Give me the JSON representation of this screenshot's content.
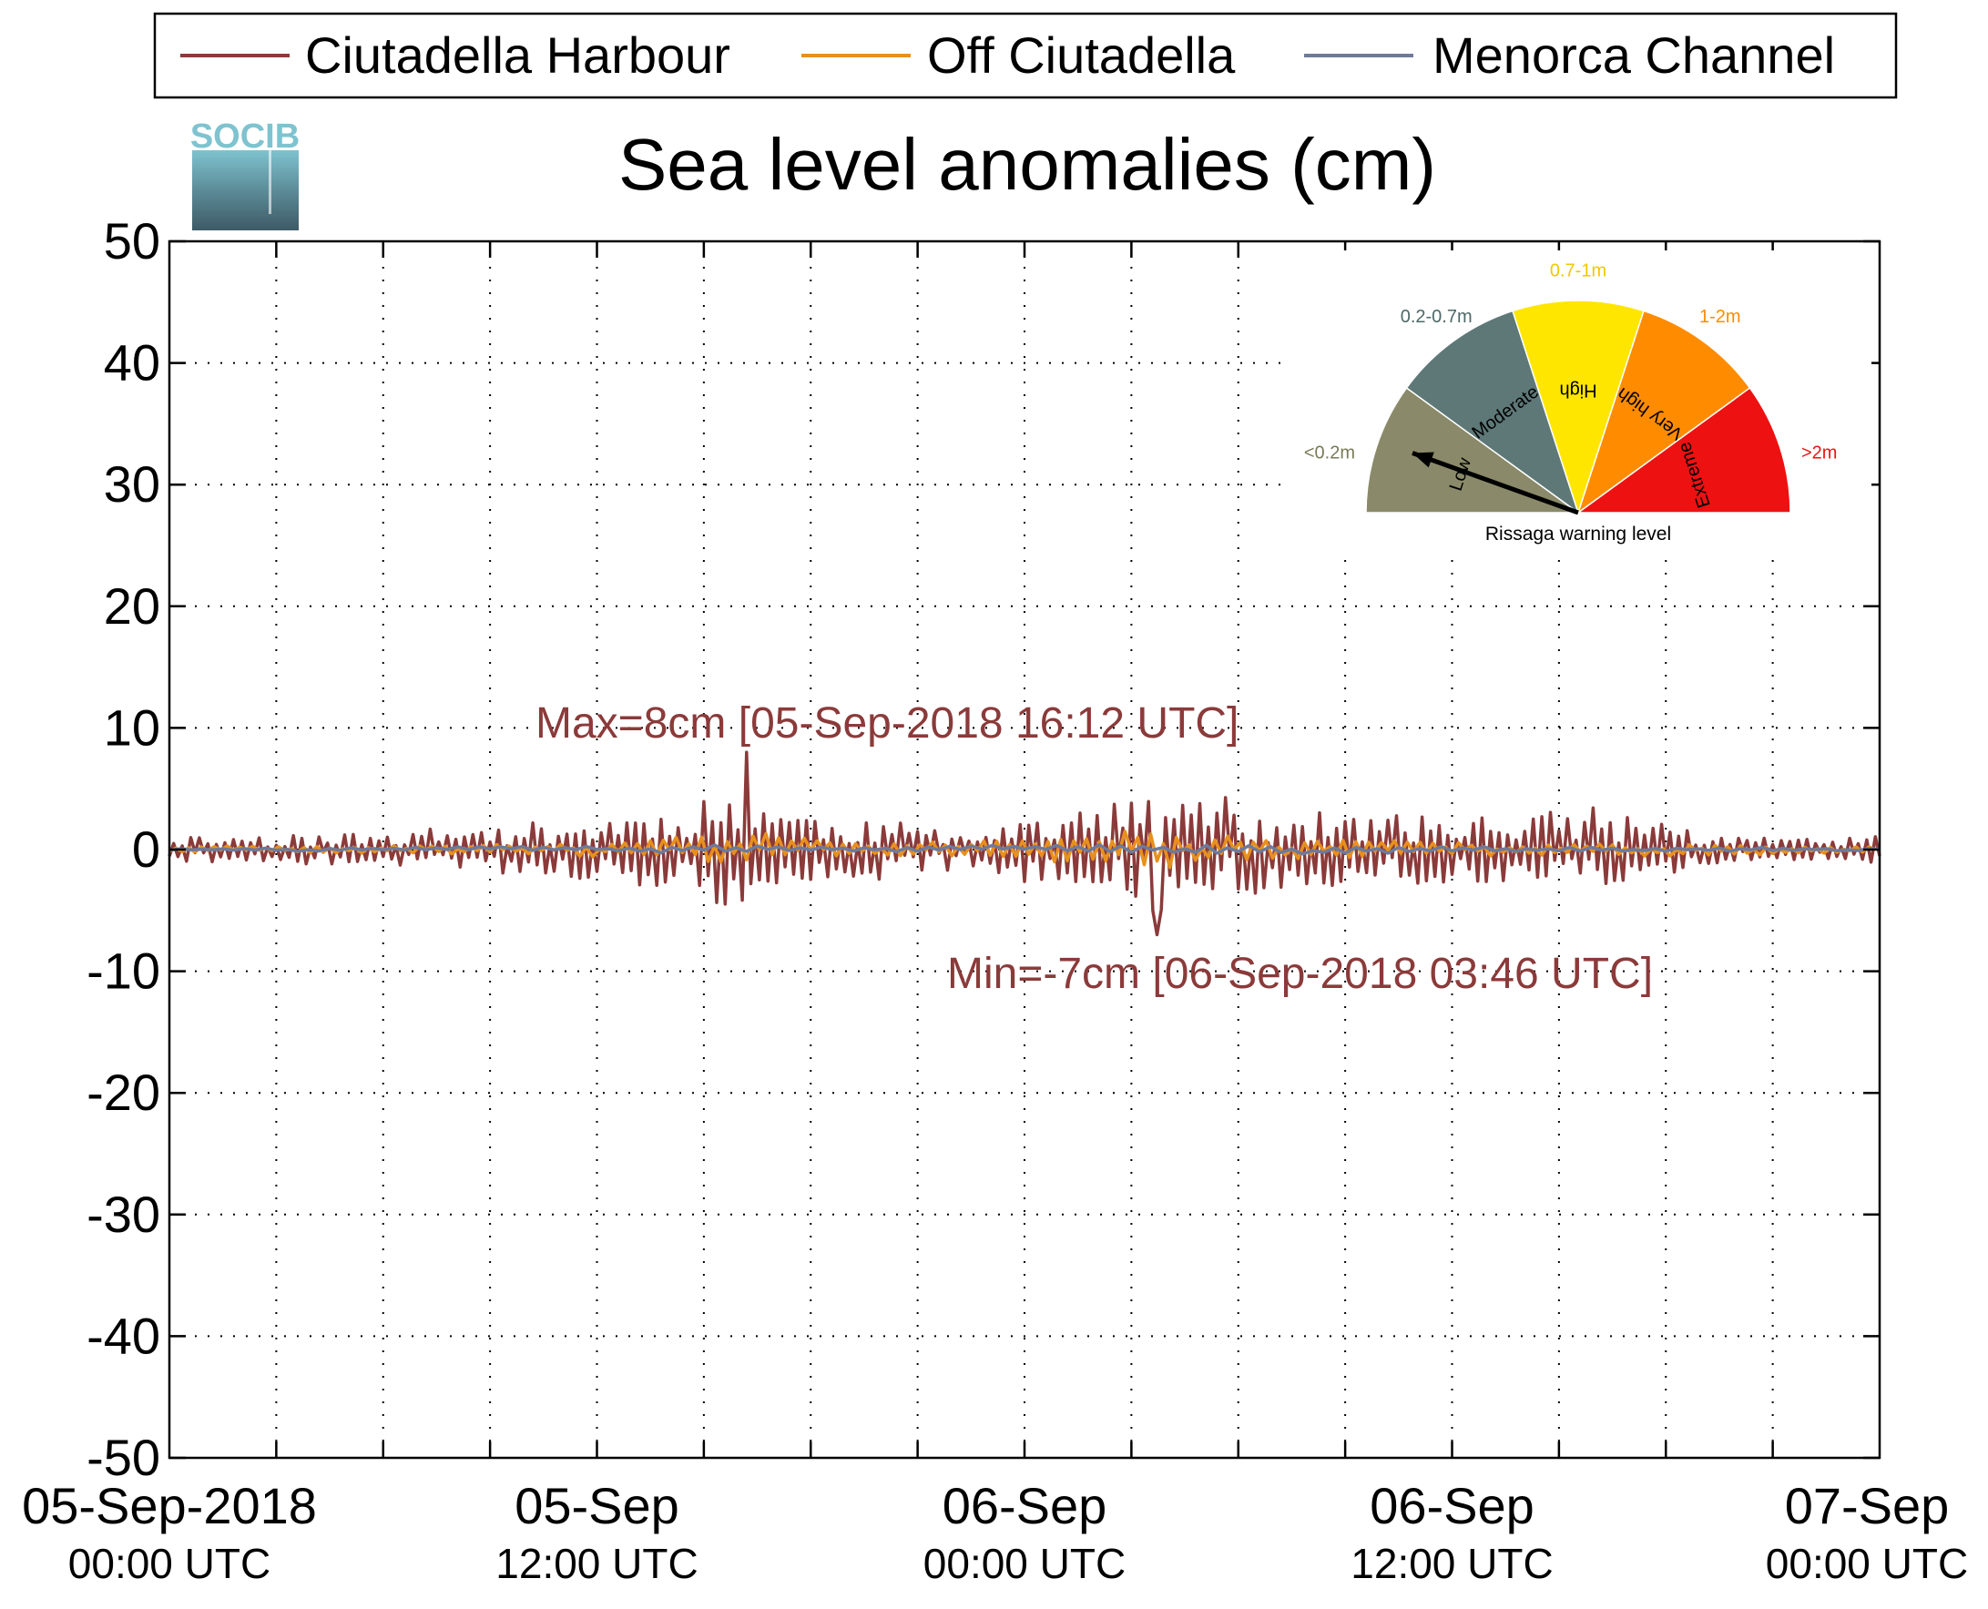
{
  "legend": {
    "items": [
      {
        "label": "Ciutadella Harbour",
        "color": "#8b3a3a"
      },
      {
        "label": "Off Ciutadella",
        "color": "#e8901e"
      },
      {
        "label": "Menorca Channel",
        "color": "#6e7a9a"
      }
    ]
  },
  "logo": {
    "text": "SOCIB"
  },
  "chart_data": {
    "type": "line",
    "title": "Sea level anomalies (cm)",
    "xlabel": "",
    "ylabel": "",
    "ylim": [
      -50,
      50
    ],
    "yticks": [
      50,
      40,
      30,
      20,
      10,
      0,
      -10,
      -20,
      -30,
      -40,
      -50
    ],
    "xlim": [
      "2018-09-05 00:00",
      "2018-09-07 00:00"
    ],
    "xtick_labels": [
      {
        "line1": "05-Sep-2018",
        "line2": "00:00 UTC",
        "hours": 0
      },
      {
        "line1": "05-Sep",
        "line2": "12:00 UTC",
        "hours": 12
      },
      {
        "line1": "06-Sep",
        "line2": "00:00 UTC",
        "hours": 24
      },
      {
        "line1": "06-Sep",
        "line2": "12:00 UTC",
        "hours": 36
      },
      {
        "line1": "07-Sep",
        "line2": "00:00 UTC",
        "hours": 48
      }
    ],
    "grid": true,
    "legend_position": "top",
    "series": [
      {
        "name": "Ciutadella Harbour",
        "color": "#8b3a3a",
        "envelope": [
          [
            0,
            1.5
          ],
          [
            3,
            1.5
          ],
          [
            6,
            1.8
          ],
          [
            9,
            2.5
          ],
          [
            11,
            3
          ],
          [
            12,
            3.2
          ],
          [
            13,
            4
          ],
          [
            14,
            4.5
          ],
          [
            15,
            5.5
          ],
          [
            16,
            6.5
          ],
          [
            16.2,
            7.8
          ],
          [
            17,
            5
          ],
          [
            18,
            4
          ],
          [
            19,
            3
          ],
          [
            20,
            3
          ],
          [
            21,
            2.5
          ],
          [
            22,
            2
          ],
          [
            23,
            3
          ],
          [
            24,
            3.5
          ],
          [
            25,
            4
          ],
          [
            26,
            4.5
          ],
          [
            27,
            5.5
          ],
          [
            27.8,
            7
          ],
          [
            29,
            6
          ],
          [
            30,
            5
          ],
          [
            31,
            4
          ],
          [
            32,
            4
          ],
          [
            34,
            3.5
          ],
          [
            36,
            3.8
          ],
          [
            38,
            4
          ],
          [
            40,
            4.2
          ],
          [
            42,
            3.5
          ],
          [
            43,
            1.5
          ],
          [
            45,
            1.2
          ],
          [
            48,
            1.5
          ]
        ]
      },
      {
        "name": "Off Ciutadella",
        "color": "#e8901e",
        "envelope": [
          [
            0,
            0.5
          ],
          [
            6,
            0.6
          ],
          [
            10,
            0.8
          ],
          [
            12,
            1
          ],
          [
            14,
            1.5
          ],
          [
            16,
            2.5
          ],
          [
            18,
            1.5
          ],
          [
            21,
            1
          ],
          [
            24,
            1.5
          ],
          [
            27,
            3.5
          ],
          [
            29,
            2
          ],
          [
            32,
            1.5
          ],
          [
            36,
            1.2
          ],
          [
            40,
            1
          ],
          [
            43,
            0.8
          ],
          [
            48,
            0.5
          ]
        ]
      },
      {
        "name": "Menorca Channel",
        "color": "#6e7a9a",
        "envelope": [
          [
            0,
            0.3
          ],
          [
            12,
            0.6
          ],
          [
            16,
            1
          ],
          [
            20,
            0.6
          ],
          [
            24,
            0.8
          ],
          [
            28,
            1.5
          ],
          [
            30,
            1
          ],
          [
            36,
            0.7
          ],
          [
            43,
            0.5
          ],
          [
            48,
            0.3
          ]
        ]
      }
    ],
    "annotations": [
      {
        "text": "Max=8cm [05-Sep-2018 16:12 UTC]",
        "value": 8,
        "time": "05-Sep-2018 16:12 UTC",
        "hours": 16.2
      },
      {
        "text": "Min=-7cm [06-Sep-2018 03:46 UTC]",
        "value": -7,
        "time": "06-Sep-2018 03:46 UTC",
        "hours": 27.77
      }
    ]
  },
  "gauge": {
    "title": "Rissaga warning level",
    "segments": [
      {
        "label": "Low",
        "range": "<0.2m",
        "color": "#8a8a6a",
        "range_color": "#7a7a5a"
      },
      {
        "label": "Moderate",
        "range": "0.2-0.7m",
        "color": "#5e7878",
        "range_color": "#4e6868"
      },
      {
        "label": "High",
        "range": "0.7-1m",
        "color": "#ffe600",
        "range_color": "#f0c800"
      },
      {
        "label": "Very high",
        "range": "1-2m",
        "color": "#ff8c00",
        "range_color": "#ff8c00"
      },
      {
        "label": "Extreme",
        "range": ">2m",
        "color": "#ee1111",
        "range_color": "#ee1111"
      }
    ],
    "needle_level": "Low"
  }
}
